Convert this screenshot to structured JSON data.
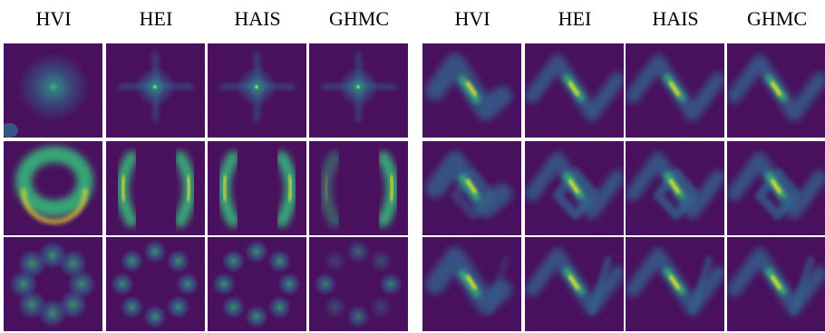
{
  "left_group": {
    "headers": [
      "HVI",
      "HEI",
      "HAIS",
      "GHMC"
    ],
    "rows": [
      {
        "target": "star-shaped density",
        "methods": [
          "HVI",
          "HEI",
          "HAIS",
          "GHMC"
        ]
      },
      {
        "target": "ring density",
        "methods": [
          "HVI",
          "HEI",
          "HAIS",
          "GHMC"
        ]
      },
      {
        "target": "mixture of eight Gaussians",
        "methods": [
          "HVI",
          "HEI",
          "HAIS",
          "GHMC"
        ]
      }
    ]
  },
  "right_group": {
    "headers": [
      "HVI",
      "HEI",
      "HAIS",
      "GHMC"
    ],
    "rows": [
      {
        "target": "zigzag density",
        "methods": [
          "HVI",
          "HEI",
          "HAIS",
          "GHMC"
        ]
      },
      {
        "target": "zigzag with diamond",
        "methods": [
          "HVI",
          "HEI",
          "HAIS",
          "GHMC"
        ]
      },
      {
        "target": "zigzag with branch",
        "methods": [
          "HVI",
          "HEI",
          "HAIS",
          "GHMC"
        ]
      }
    ]
  },
  "colors": {
    "background": "#440154",
    "mid": "#31688e",
    "high": "#35b779",
    "peak": "#fde725"
  }
}
